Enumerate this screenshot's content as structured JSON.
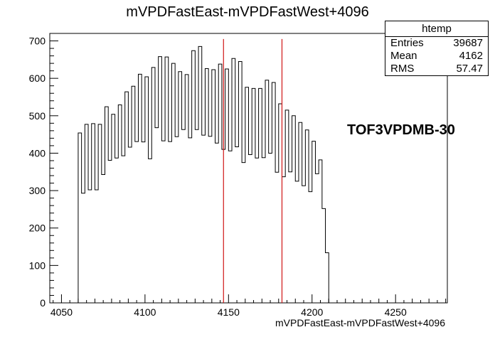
{
  "chart_data": {
    "type": "histogram",
    "title": "mVPDFastEast-mVPDFastWest+4096",
    "xlabel": "mVPDFastEast-mVPDFastWest+4096",
    "ylabel": "",
    "xlim": [
      4043,
      4281
    ],
    "ylim": [
      0,
      720
    ],
    "x_ticks": [
      4050,
      4100,
      4150,
      4200,
      4250
    ],
    "y_ticks": [
      0,
      100,
      200,
      300,
      400,
      500,
      600,
      700
    ],
    "bin_start": 4060,
    "bin_width": 2,
    "values": [
      454,
      293,
      477,
      302,
      479,
      302,
      477,
      343,
      524,
      381,
      504,
      387,
      529,
      393,
      564,
      416,
      579,
      431,
      611,
      430,
      604,
      385,
      629,
      468,
      658,
      433,
      657,
      431,
      640,
      444,
      618,
      463,
      610,
      441,
      674,
      463,
      685,
      448,
      626,
      445,
      623,
      427,
      638,
      410,
      625,
      406,
      653,
      417,
      645,
      375,
      576,
      396,
      573,
      387,
      573,
      388,
      595,
      400,
      589,
      349,
      532,
      337,
      515,
      350,
      500,
      325,
      482,
      313,
      462,
      297,
      432,
      345,
      382,
      252,
      134
    ],
    "annotation": "TOF3VPDMB-30",
    "vertical_lines": [
      4147,
      4182
    ],
    "stats": {
      "name": "htemp",
      "entries": "39687",
      "mean": "4162",
      "rms": "57.47"
    },
    "grid": false
  },
  "stats_labels": {
    "entries": "Entries",
    "mean": "Mean",
    "rms": "RMS"
  },
  "colors": {
    "histogram": "#000000",
    "marker_lines": "#d01515",
    "axes": "#000000",
    "background": "#ffffff"
  }
}
